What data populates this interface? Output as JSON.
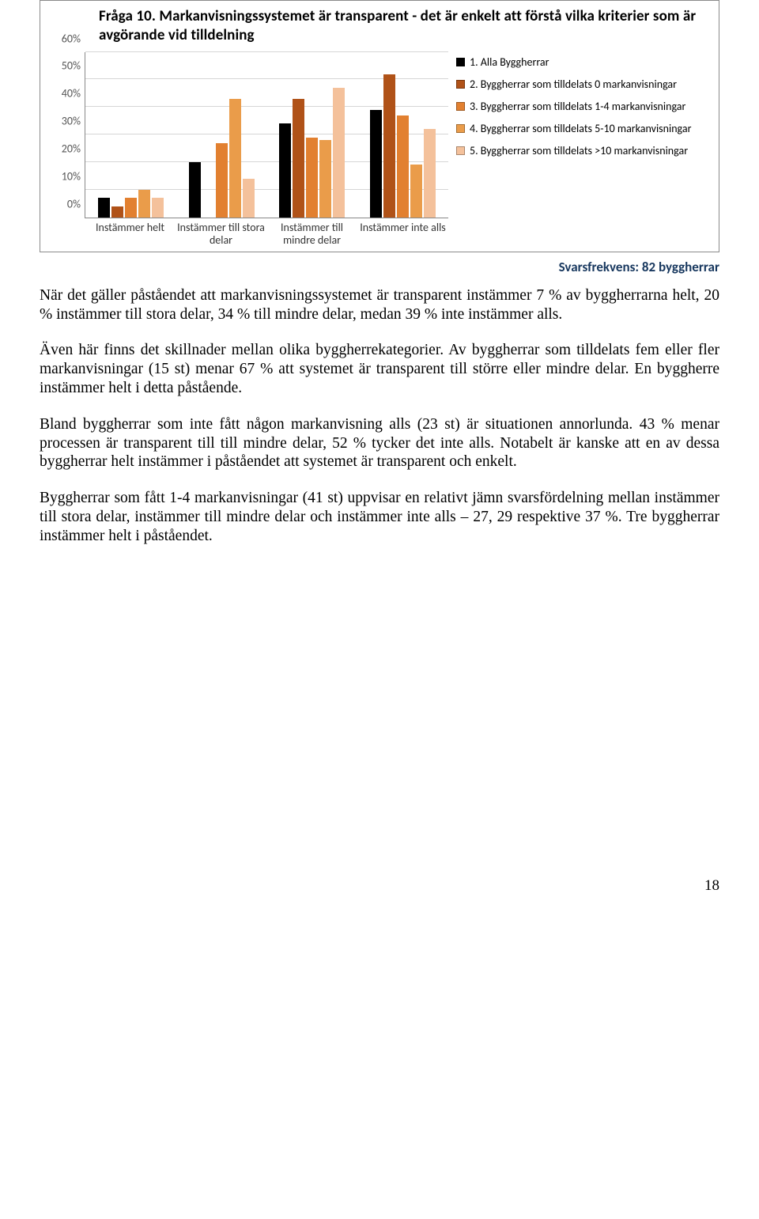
{
  "chart": {
    "title": "Fråga 10. Markanvisningssystemet är transparent - det är enkelt att förstå vilka kriterier som är avgörande vid tilldelning",
    "type": "grouped-bar",
    "y_max": 60,
    "y_tick_step": 10,
    "y_tick_suffix": "%",
    "background_color": "#ffffff",
    "grid_color": "#d6d6d6",
    "axis_color": "#888888",
    "categories": [
      "Instämmer helt",
      "Instämmer till stora delar",
      "Instämmer till mindre delar",
      "Instämmer inte alls"
    ],
    "series": [
      {
        "key": "s1",
        "label": "1. Alla Byggherrar",
        "color": "#000000",
        "values": [
          7,
          20,
          34,
          39
        ]
      },
      {
        "key": "s2",
        "label": "2. Byggherrar som tilldelats 0 markanvisningar",
        "color": "#b05218",
        "values": [
          4,
          0,
          43,
          52
        ]
      },
      {
        "key": "s3",
        "label": "3. Byggherrar som tilldelats 1-4 markanvisningar",
        "color": "#e28030",
        "values": [
          7,
          27,
          29,
          37
        ]
      },
      {
        "key": "s4",
        "label": "4. Byggherrar som tilldelats 5-10 markanvisningar",
        "color": "#ea9c4a",
        "values": [
          10,
          43,
          28,
          19
        ]
      },
      {
        "key": "s5",
        "label": "5. Byggherrar som tilldelats >10 markanvisningar",
        "color": "#f4c19b",
        "values": [
          7,
          14,
          47,
          32
        ]
      }
    ],
    "title_fontsize": 19,
    "label_fontsize": 14
  },
  "caption": "Svarsfrekvens: 82 byggherrar",
  "paragraphs": {
    "p1": "När det gäller påståendet att markanvisningssystemet är transparent instämmer 7 % av byggherrarna helt, 20 % instämmer till stora delar, 34 % till mindre delar, medan 39 % inte instämmer alls.",
    "p2": "Även här finns det skillnader mellan olika byggherrekategorier. Av byggherrar som tilldelats fem eller fler markanvisningar (15 st) menar 67 % att systemet är transparent till större eller mindre delar. En byggherre instämmer helt i detta påstående.",
    "p3": "Bland byggherrar som inte fått någon markanvisning alls (23 st) är situationen annorlunda. 43 % menar processen är transparent till till mindre delar, 52 % tycker det inte alls. Notabelt är kanske att en av dessa byggherrar helt instämmer i påståendet att systemet är transparent och enkelt.",
    "p4": "Byggherrar som fått 1-4 markanvisningar (41 st) uppvisar en relativt jämn svarsfördelning mellan instämmer till stora delar, instämmer till mindre delar och instämmer inte alls – 27, 29 respektive 37 %. Tre byggherrar instämmer helt i påståendet."
  },
  "page_number": "18"
}
